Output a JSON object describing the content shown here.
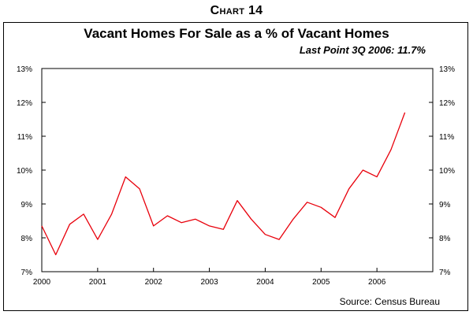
{
  "header": {
    "chart_number": "Chart 14"
  },
  "chart_data": {
    "type": "line",
    "title": "Vacant Homes For Sale as a % of Vacant Homes",
    "subtitle": "Last Point 3Q 2006: 11.7%",
    "source": "Source: Census Bureau",
    "xlabel": "",
    "ylabel": "",
    "x_ticks": [
      "2000",
      "2001",
      "2002",
      "2003",
      "2004",
      "2005",
      "2006"
    ],
    "xlim": [
      2000,
      2007
    ],
    "ylim": [
      7,
      13
    ],
    "y_ticks": [
      "7%",
      "8%",
      "9%",
      "10%",
      "11%",
      "12%",
      "13%"
    ],
    "y_tick_values": [
      7,
      8,
      9,
      10,
      11,
      12,
      13
    ],
    "grid": false,
    "series": [
      {
        "color": "#e8000b",
        "x": [
          "2000 Q1",
          "2000 Q2",
          "2000 Q3",
          "2000 Q4",
          "2001 Q1",
          "2001 Q2",
          "2001 Q3",
          "2001 Q4",
          "2002 Q1",
          "2002 Q2",
          "2002 Q3",
          "2002 Q4",
          "2003 Q1",
          "2003 Q2",
          "2003 Q3",
          "2003 Q4",
          "2004 Q1",
          "2004 Q2",
          "2004 Q3",
          "2004 Q4",
          "2005 Q1",
          "2005 Q2",
          "2005 Q3",
          "2005 Q4",
          "2006 Q1",
          "2006 Q2",
          "2006 Q3"
        ],
        "values": [
          8.35,
          7.5,
          8.4,
          8.7,
          7.95,
          8.7,
          9.8,
          9.45,
          8.35,
          8.65,
          8.45,
          8.55,
          8.35,
          8.25,
          9.1,
          8.55,
          8.1,
          7.95,
          8.55,
          9.05,
          8.9,
          8.6,
          9.45,
          10.0,
          9.8,
          10.6,
          11.7
        ]
      }
    ]
  }
}
